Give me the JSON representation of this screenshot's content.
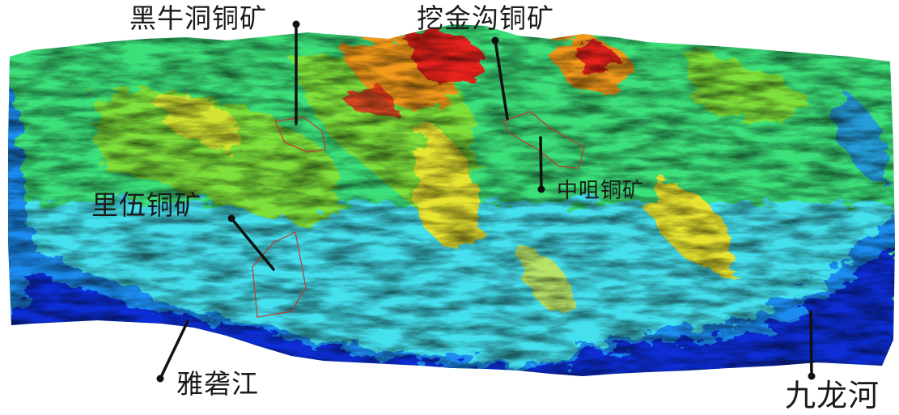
{
  "map": {
    "labels": {
      "heiniudong": "黑牛洞铜矿",
      "wajingou": "挖金沟铜矿",
      "zhongda": "中咀铜矿",
      "liwu": "里伍铜矿",
      "yalongjiang": "雅砻江",
      "jiulonghe": "九龙河"
    },
    "elevation_colors": [
      "#0b1fd0",
      "#1e8cf0",
      "#44e0ee",
      "#3ce07a",
      "#7ee03a",
      "#e8e430",
      "#f29a1c",
      "#e8241a"
    ],
    "boundary_color": "#c0392b",
    "leader_color": "#111111"
  }
}
